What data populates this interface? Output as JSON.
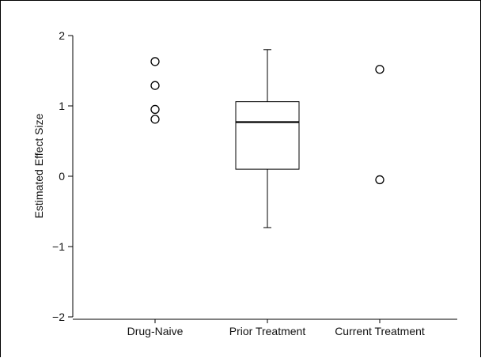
{
  "chart_data": {
    "type": "box",
    "ylabel": "Estimated Effect Size",
    "xlabel": "",
    "ylim": [
      -2,
      2
    ],
    "yticks": [
      2,
      1,
      0,
      -1,
      -2
    ],
    "ytick_labels": [
      "2",
      "1",
      "0",
      "−1",
      "−2"
    ],
    "categories": [
      "Drug-Naive",
      "Prior Treatment",
      "Current Treatment"
    ],
    "groups": [
      {
        "category": "Drug-Naive",
        "points": [
          1.63,
          1.29,
          0.95,
          0.81
        ]
      },
      {
        "category": "Prior Treatment",
        "box": {
          "whisker_low": -0.73,
          "q1": 0.1,
          "median": 0.77,
          "q3": 1.06,
          "whisker_high": 1.8
        }
      },
      {
        "category": "Current Treatment",
        "points": [
          1.52,
          -0.05
        ]
      }
    ],
    "grid": false,
    "legend": "none",
    "colors": {
      "stroke": "#000000",
      "background": "#ffffff"
    }
  }
}
